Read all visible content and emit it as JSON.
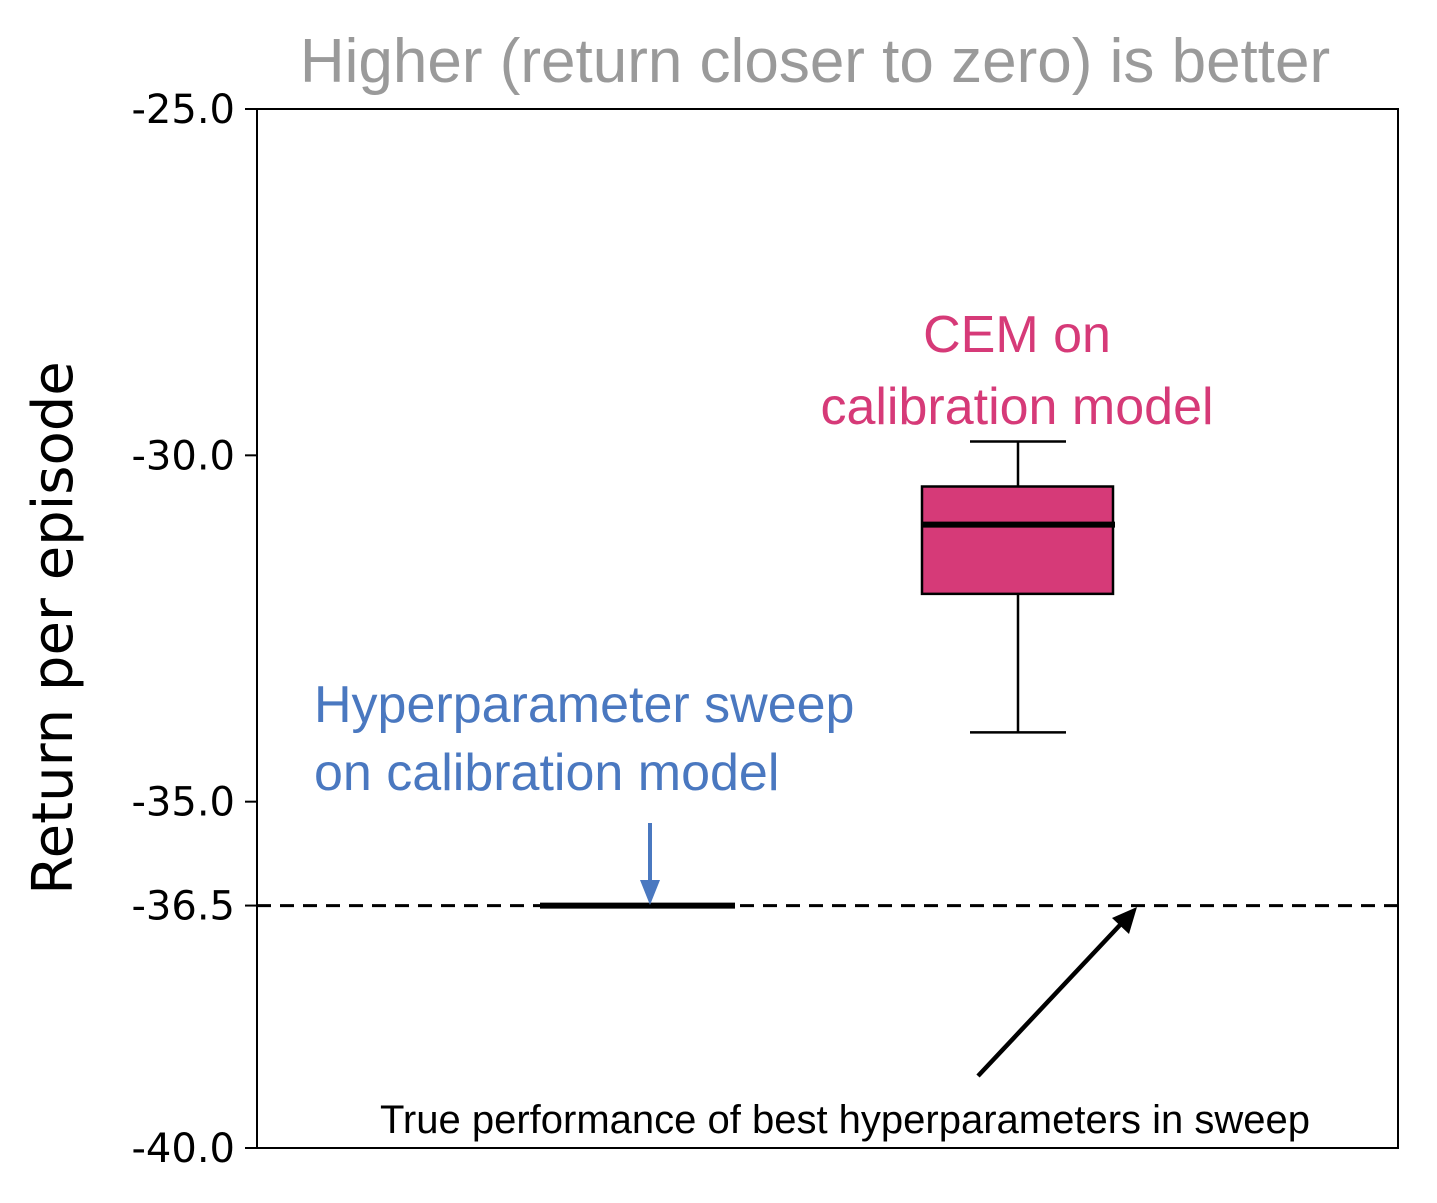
{
  "chart_data": {
    "type": "box",
    "title": "Higher (return closer to zero) is better",
    "ylabel": "Return per episode",
    "ylim": [
      -40.0,
      -25.0
    ],
    "yticks": [
      -25.0,
      -30.0,
      -35.0,
      -36.5,
      -40.0
    ],
    "ytick_labels": [
      "-25.0",
      "-30.0",
      "-35.0",
      "-36.5",
      "-40.0"
    ],
    "box": {
      "label": "CEM on calibration model",
      "color": "#d63a78",
      "whisker_high": -29.8,
      "q3": -30.45,
      "median": -31.0,
      "q1": -32.0,
      "whisker_low": -34.0
    },
    "sweep": {
      "label": "Hyperparameter sweep on calibration model",
      "color": "#4a78c0",
      "value": -36.5
    },
    "reference_line": {
      "label": "True performance of best hyperparameters in sweep",
      "value": -36.5,
      "style": "dashed"
    },
    "annotations": {
      "cem_line1": "CEM on",
      "cem_line2": "calibration model",
      "sweep_line1": "Hyperparameter sweep",
      "sweep_line2": "on calibration model",
      "true_perf": "True performance of best hyperparameters in sweep"
    }
  }
}
